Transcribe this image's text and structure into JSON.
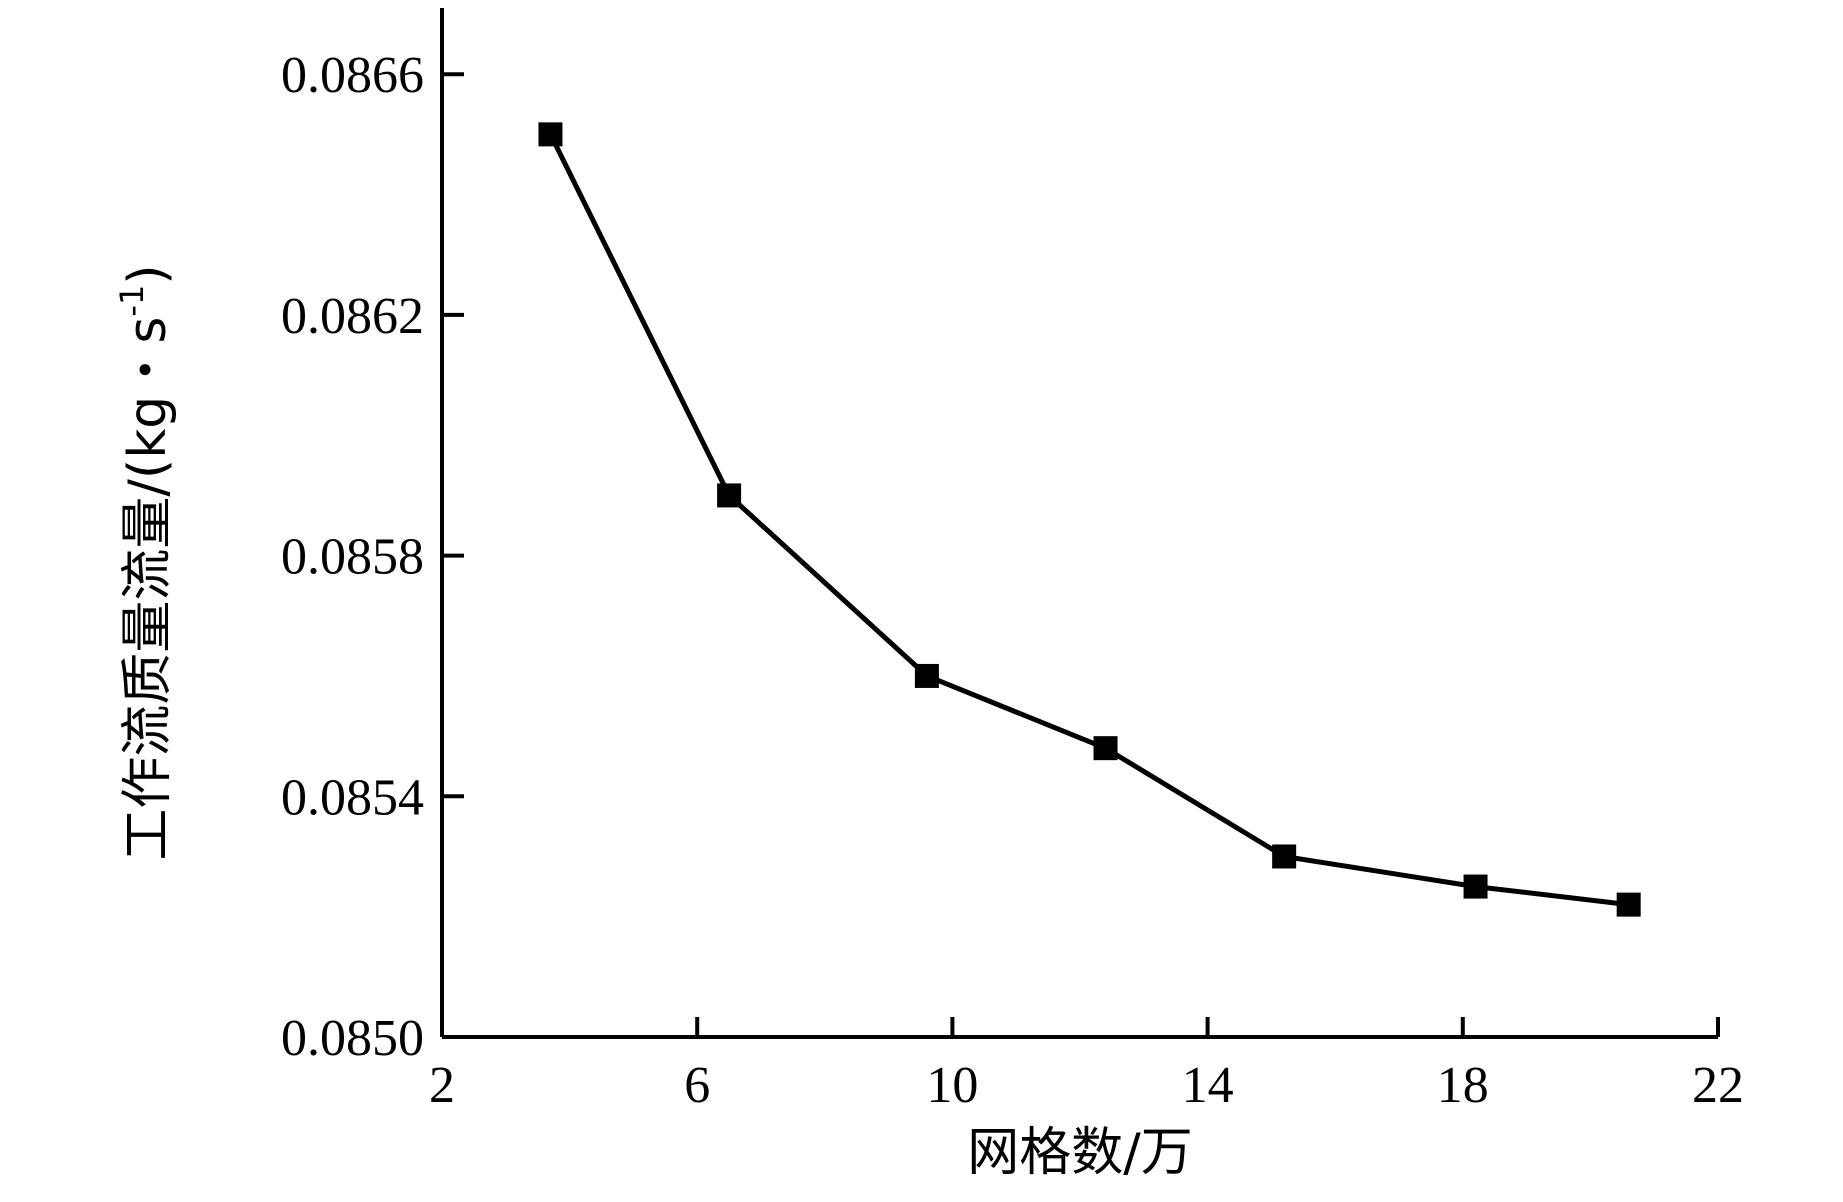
{
  "chart_data": {
    "type": "line",
    "xlabel": "网格数/万",
    "ylabel": "工作流质量流量/(kg・s",
    "ylabel_sup": "-1",
    "ylabel_close": ")",
    "xlim": [
      2,
      22
    ],
    "ylim": [
      0.085,
      0.08671
    ],
    "xticks": [
      2,
      6,
      10,
      14,
      18,
      22
    ],
    "yticks": [
      0.085,
      0.0854,
      0.0858,
      0.0862,
      0.0866
    ],
    "ytick_labels": [
      "0.0850",
      "0.0854",
      "0.0858",
      "0.0862",
      "0.0866"
    ],
    "grid": false,
    "series": [
      {
        "x": [
          3.7,
          6.5,
          9.6,
          12.4,
          15.2,
          18.2,
          20.6
        ],
        "y": [
          0.0865,
          0.0859,
          0.0856,
          0.08548,
          0.0853,
          0.08525,
          0.08522
        ],
        "marker": "square",
        "color": "#000000"
      }
    ]
  }
}
